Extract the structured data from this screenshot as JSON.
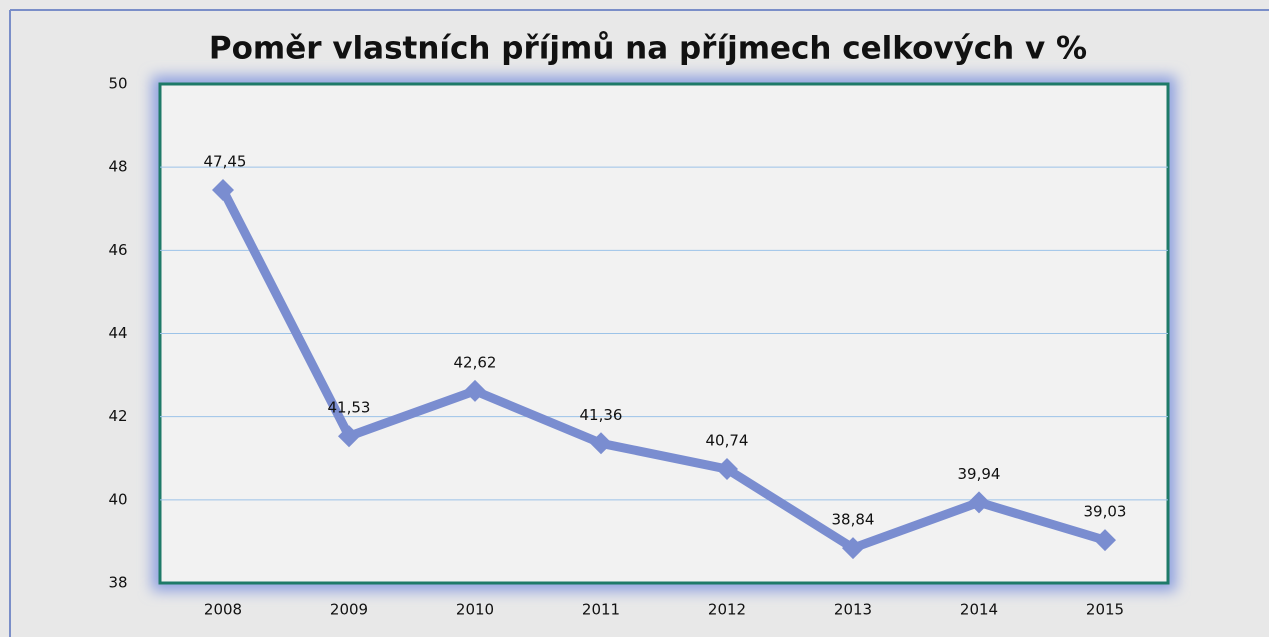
{
  "chart_data": {
    "type": "line",
    "title": "Poměr vlastních příjmů na příjmech celkových v %",
    "categories": [
      "2008",
      "2009",
      "2010",
      "2011",
      "2012",
      "2013",
      "2014",
      "2015"
    ],
    "series": [
      {
        "color": "#7a8dd0",
        "values": [
          47.45,
          41.53,
          42.62,
          41.36,
          40.74,
          38.84,
          39.94,
          39.03
        ],
        "value_labels": [
          "47,45",
          "41,53",
          "42,62",
          "41,36",
          "40,74",
          "38,84",
          "39,94",
          "39,03"
        ]
      }
    ],
    "ylim": [
      38,
      50
    ],
    "yticks": [
      38,
      40,
      42,
      44,
      46,
      48,
      50
    ],
    "grid": true
  }
}
